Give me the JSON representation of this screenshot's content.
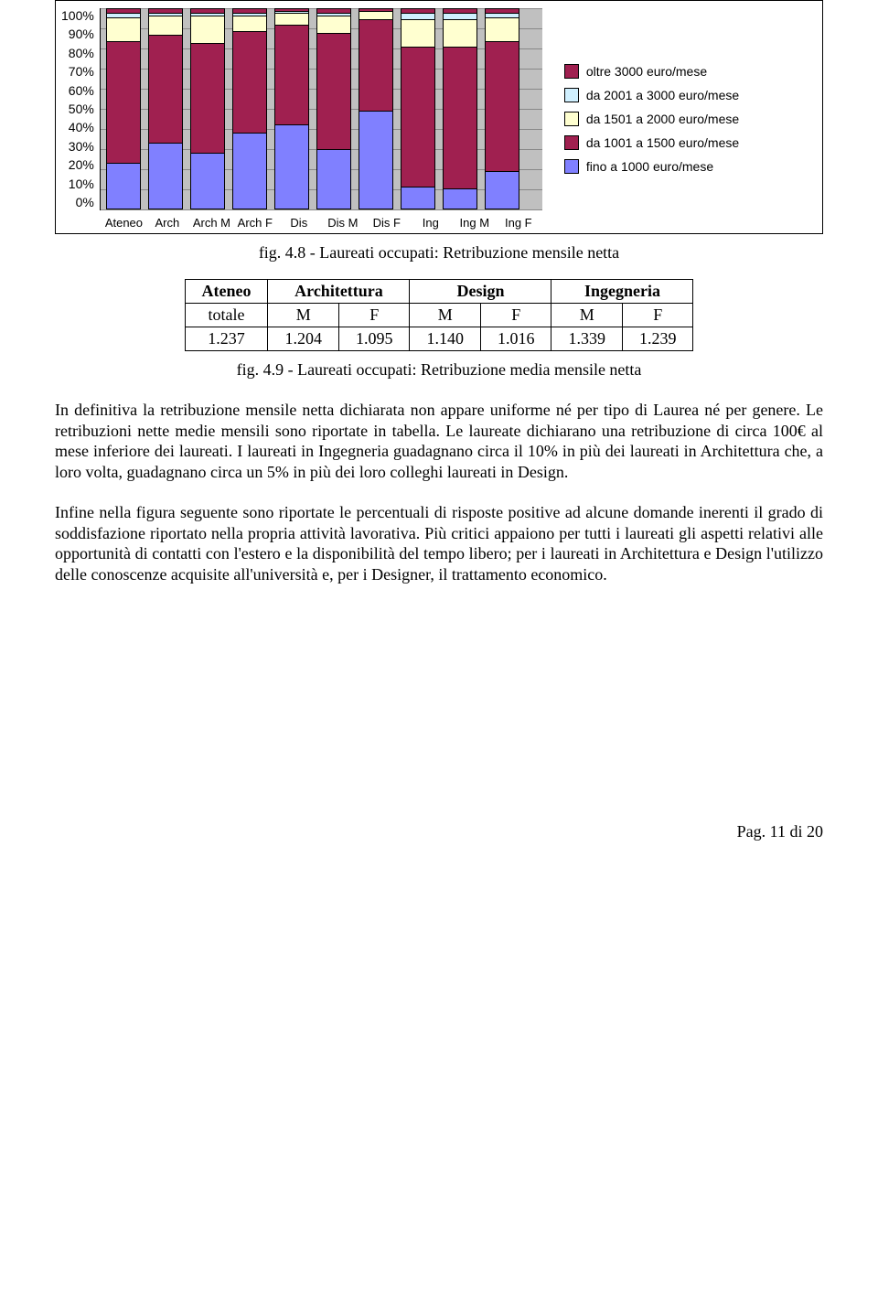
{
  "chart": {
    "type": "stacked-bar-100",
    "background_color": "#c0c0c0",
    "grid_color": "#888888",
    "border_color": "#000000",
    "y_ticks": [
      "100%",
      "90%",
      "80%",
      "70%",
      "60%",
      "50%",
      "40%",
      "30%",
      "20%",
      "10%",
      "0%"
    ],
    "categories": [
      "Ateneo",
      "Arch",
      "Arch M",
      "Arch F",
      "Dis",
      "Dis M",
      "Dis F",
      "Ing",
      "Ing M",
      "Ing F"
    ],
    "series": [
      {
        "key": "s1",
        "label": "fino a 1000 euro/mese",
        "color": "#8080ff"
      },
      {
        "key": "s2",
        "label": "da 1001 a 1500 euro/mese",
        "color": "#a02050"
      },
      {
        "key": "s3",
        "label": "da 1501 a 2000 euro/mese",
        "color": "#ffffd0"
      },
      {
        "key": "s4",
        "label": "da 2001 a 3000 euro/mese",
        "color": "#d0f0ff"
      },
      {
        "key": "s5",
        "label": "oltre 3000 euro/mese",
        "color": "#a02050"
      }
    ],
    "legend_order": [
      "s5",
      "s4",
      "s3",
      "s2",
      "s1"
    ],
    "values": {
      "Ateneo": {
        "s1": 23,
        "s2": 61,
        "s3": 12,
        "s4": 2,
        "s5": 2
      },
      "Arch": {
        "s1": 33,
        "s2": 54,
        "s3": 10,
        "s4": 1,
        "s5": 2
      },
      "Arch M": {
        "s1": 28,
        "s2": 55,
        "s3": 14,
        "s4": 1,
        "s5": 2
      },
      "Arch F": {
        "s1": 38,
        "s2": 51,
        "s3": 8,
        "s4": 1,
        "s5": 2
      },
      "Dis": {
        "s1": 42,
        "s2": 50,
        "s3": 6,
        "s4": 1,
        "s5": 1
      },
      "Dis M": {
        "s1": 30,
        "s2": 58,
        "s3": 9,
        "s4": 1,
        "s5": 2
      },
      "Dis F": {
        "s1": 49,
        "s2": 46,
        "s3": 4,
        "s4": 0,
        "s5": 1
      },
      "Ing": {
        "s1": 11,
        "s2": 70,
        "s3": 14,
        "s4": 3,
        "s5": 2
      },
      "Ing M": {
        "s1": 10,
        "s2": 71,
        "s3": 14,
        "s4": 3,
        "s5": 2
      },
      "Ing F": {
        "s1": 19,
        "s2": 65,
        "s3": 12,
        "s4": 2,
        "s5": 2
      }
    }
  },
  "caption1": "fig. 4.8 - Laureati occupati: Retribuzione mensile netta",
  "table": {
    "h_ateneo": "Ateneo",
    "h_arch": "Architettura",
    "h_des": "Design",
    "h_ing": "Ingegneria",
    "sub_totale": "totale",
    "sub_m": "M",
    "sub_f": "F",
    "r_ateneo": "1.237",
    "r_arch_m": "1.204",
    "r_arch_f": "1.095",
    "r_des_m": "1.140",
    "r_des_f": "1.016",
    "r_ing_m": "1.339",
    "r_ing_f": "1.239"
  },
  "caption2": "fig. 4.9 - Laureati occupati: Retribuzione media mensile netta",
  "para1": "In definitiva la retribuzione mensile netta dichiarata non appare uniforme né per tipo di Laurea né per genere. Le retribuzioni nette medie mensili sono riportate in tabella. Le laureate dichiarano una retribuzione di circa 100€ al mese inferiore dei laureati. I laureati in Ingegneria guadagnano circa il 10% in più dei laureati in Architettura che, a loro volta, guadagnano circa un 5% in più dei loro colleghi laureati in Design.",
  "para2": "Infine nella figura seguente sono riportate le percentuali di risposte positive ad alcune domande inerenti il grado di soddisfazione riportato nella propria attività lavorativa. Più critici appaiono per tutti i laureati gli aspetti relativi alle opportunità di contatti con l'estero e la disponibilità del tempo libero; per i laureati in Architettura e Design l'utilizzo delle conoscenze acquisite all'università e, per i Designer, il trattamento economico.",
  "footer": "Pag. 11 di 20"
}
